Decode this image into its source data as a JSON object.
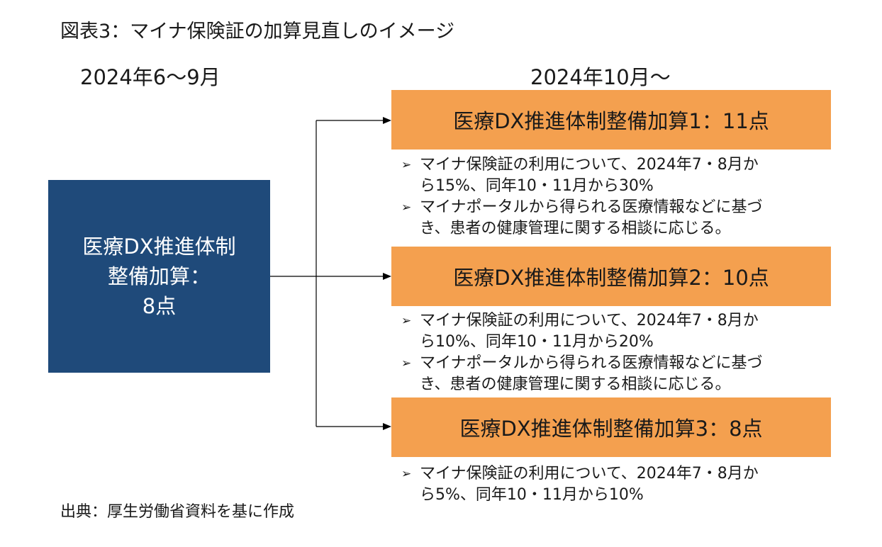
{
  "title": "図表3：マイナ保険証の加算見直しのイメージ",
  "left_period": "2024年6〜9月",
  "right_period": "2024年10月〜",
  "current": {
    "lines": [
      "医療DX推進体制",
      "整備加算：",
      "8点"
    ]
  },
  "bullet_marker": "➢",
  "options": [
    {
      "label": "医療DX推進体制整備加算1：11点",
      "notes": [
        [
          "マイナ保険証の利用について、2024年7・8月か",
          "ら15%、同年10・11月から30%"
        ],
        [
          "マイナポータルから得られる医療情報などに基づ",
          "き、患者の健康管理に関する相談に応じる。"
        ]
      ]
    },
    {
      "label": "医療DX推進体制整備加算2：10点",
      "notes": [
        [
          "マイナ保険証の利用について、2024年7・8月か",
          "ら10%、同年10・11月から20%"
        ],
        [
          "マイナポータルから得られる医療情報などに基づ",
          "き、患者の健康管理に関する相談に応じる。"
        ]
      ]
    },
    {
      "label": "医療DX推進体制整備加算3：8点",
      "notes": [
        [
          "マイナ保険証の利用について、2024年7・8月か",
          "ら5%、同年10・11月から10%"
        ]
      ]
    }
  ],
  "source": "出典：厚生労働省資料を基に作成",
  "colors": {
    "left_box": "#1f4a7a",
    "option_box": "#f4a04f",
    "connector": "#000000"
  }
}
